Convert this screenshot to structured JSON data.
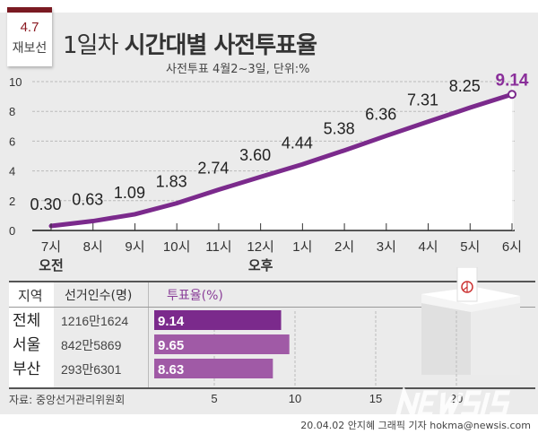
{
  "badge": {
    "date": "4.7",
    "label": "재보선"
  },
  "title_prefix": "1일차",
  "title_main": "시간대별 사전투표율",
  "subtitle": "사전투표 4월2~3일, 단위:%",
  "chart_data": [
    {
      "type": "line",
      "categories": [
        "7시",
        "8시",
        "9시",
        "10시",
        "11시",
        "12시",
        "1시",
        "2시",
        "3시",
        "4시",
        "5시",
        "6시"
      ],
      "values": [
        0.3,
        0.63,
        1.09,
        1.83,
        2.74,
        3.6,
        4.44,
        5.38,
        6.36,
        7.31,
        8.25,
        9.14
      ],
      "labels": [
        "0.30",
        "0.63",
        "1.09",
        "1.83",
        "2.74",
        "3.60",
        "4.44",
        "5.38",
        "6.36",
        "7.31",
        "8.25",
        "9.14"
      ],
      "ylim": [
        0,
        10
      ],
      "yticks": [
        "0",
        "2",
        "4",
        "6",
        "8",
        "10"
      ],
      "period_labels": [
        {
          "at": "7시",
          "text": "오전"
        },
        {
          "at": "12시",
          "text": "오후"
        }
      ],
      "grid": true,
      "line_color": "#7b2a8c",
      "highlight_color": "#8a2f9a"
    },
    {
      "type": "bar",
      "orientation": "horizontal",
      "columns": [
        "지역",
        "선거인수(명)",
        "투표율(%)"
      ],
      "categories": [
        "전체",
        "서울",
        "부산"
      ],
      "voters": [
        "1216만1624",
        "842만5869",
        "293만6301"
      ],
      "values": [
        9.14,
        9.65,
        8.63
      ],
      "labels": [
        "9.14",
        "9.65",
        "8.63"
      ],
      "xlim": [
        0,
        20
      ],
      "xticks": [
        "5",
        "10",
        "15",
        "20"
      ],
      "colors": [
        "#7b2a8c",
        "#a05aa6",
        "#a05aa6"
      ]
    }
  ],
  "source": "자료: 중앙선거관리위원회",
  "credit": "20.04.02 안지혜 그래픽 기자 hokma@newsis.com",
  "watermark": "NEWSIS"
}
